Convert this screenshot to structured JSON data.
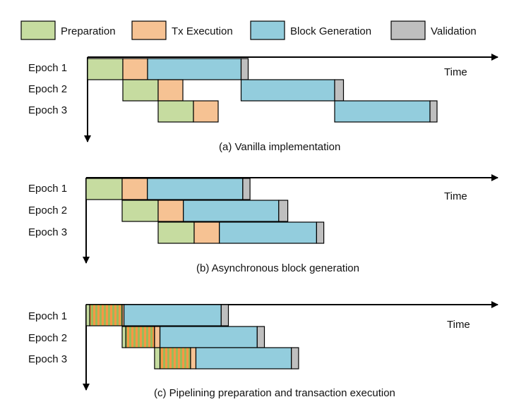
{
  "legend": [
    {
      "key": "prep",
      "label": "Preparation",
      "color": "#c6dca0"
    },
    {
      "key": "tx",
      "label": "Tx Execution",
      "color": "#f6c293"
    },
    {
      "key": "block",
      "label": "Block Generation",
      "color": "#93cddd"
    },
    {
      "key": "val",
      "label": "Validation",
      "color": "#bfbfbf"
    }
  ],
  "pipeline_hatch": {
    "base_color": "#9bbb59",
    "stripe_color": "#f79646"
  },
  "time_label": "Time",
  "panels": [
    {
      "id": "a",
      "caption": "(a) Vanilla implementation",
      "epochs": [
        {
          "label": "Epoch 1",
          "segments": [
            [
              "prep",
              0,
              1
            ],
            [
              "tx",
              1,
              1.7
            ],
            [
              "block",
              1.7,
              4.35
            ],
            [
              "val",
              4.35,
              4.55
            ]
          ]
        },
        {
          "label": "Epoch 2",
          "segments": [
            [
              "prep",
              1,
              2
            ],
            [
              "tx",
              2,
              2.7
            ],
            [
              "block",
              4.35,
              7
            ],
            [
              "val",
              7,
              7.25
            ]
          ]
        },
        {
          "label": "Epoch 3",
          "segments": [
            [
              "prep",
              2,
              3
            ],
            [
              "tx",
              3,
              3.7
            ],
            [
              "block",
              7,
              9.7
            ],
            [
              "val",
              9.7,
              9.9
            ]
          ]
        }
      ]
    },
    {
      "id": "b",
      "caption": "(b) Asynchronous block generation",
      "epochs": [
        {
          "label": "Epoch 1",
          "segments": [
            [
              "prep",
              0,
              1
            ],
            [
              "tx",
              1,
              1.7
            ],
            [
              "block",
              1.7,
              4.35
            ],
            [
              "val",
              4.35,
              4.55
            ]
          ]
        },
        {
          "label": "Epoch 2",
          "segments": [
            [
              "prep",
              1,
              2
            ],
            [
              "tx",
              2,
              2.7
            ],
            [
              "block",
              2.7,
              5.35
            ],
            [
              "val",
              5.35,
              5.6
            ]
          ]
        },
        {
          "label": "Epoch 3",
          "segments": [
            [
              "prep",
              2,
              3
            ],
            [
              "tx",
              3,
              3.7
            ],
            [
              "block",
              3.7,
              6.4
            ],
            [
              "val",
              6.4,
              6.6
            ]
          ]
        }
      ]
    },
    {
      "id": "c",
      "caption": "(c) Pipelining preparation and transaction execution",
      "epochs": [
        {
          "label": "Epoch 1",
          "segments": [
            [
              "prep",
              0,
              0.1
            ],
            [
              "pipe",
              0.1,
              1
            ],
            [
              "tx",
              1,
              1.05
            ],
            [
              "block",
              1.05,
              3.75
            ],
            [
              "val",
              3.75,
              3.95
            ]
          ]
        },
        {
          "label": "Epoch 2",
          "segments": [
            [
              "prep",
              1,
              1.1
            ],
            [
              "pipe",
              1.1,
              1.9
            ],
            [
              "tx",
              1.9,
              2.05
            ],
            [
              "block",
              2.05,
              4.75
            ],
            [
              "val",
              4.75,
              4.95
            ]
          ]
        },
        {
          "label": "Epoch 3",
          "segments": [
            [
              "prep",
              1.9,
              2.05
            ],
            [
              "pipe",
              2.05,
              2.9
            ],
            [
              "tx",
              2.9,
              3.05
            ],
            [
              "block",
              3.05,
              5.7
            ],
            [
              "val",
              5.7,
              5.9
            ]
          ]
        }
      ]
    }
  ]
}
